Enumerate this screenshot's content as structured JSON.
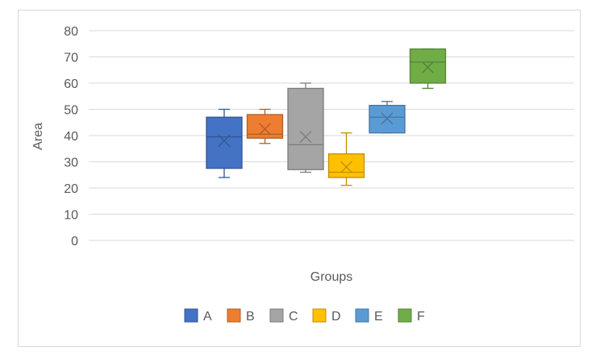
{
  "chart_data": {
    "type": "box",
    "title": "",
    "xlabel": "Groups",
    "ylabel": "Area",
    "ylim": [
      0,
      80
    ],
    "yticks": [
      0,
      10,
      20,
      30,
      40,
      50,
      60,
      70,
      80
    ],
    "grid": true,
    "legend_position": "bottom",
    "series": [
      {
        "name": "A",
        "color": "#4472C4",
        "min": 24,
        "q1": 27.5,
        "median": 39.5,
        "q3": 47,
        "max": 50,
        "mean": 38
      },
      {
        "name": "B",
        "color": "#ED7D31",
        "min": 37,
        "q1": 39,
        "median": 40.5,
        "q3": 48,
        "max": 50,
        "mean": 42.5
      },
      {
        "name": "C",
        "color": "#A5A5A5",
        "min": 26,
        "q1": 27,
        "median": 36.5,
        "q3": 58,
        "max": 60,
        "mean": 39.5
      },
      {
        "name": "D",
        "color": "#FFC000",
        "min": 21,
        "q1": 24,
        "median": 26,
        "q3": 33,
        "max": 41,
        "mean": 28
      },
      {
        "name": "E",
        "color": "#5B9BD5",
        "min": 41,
        "q1": 41,
        "median": 47,
        "q3": 51.5,
        "max": 53,
        "mean": 46.5
      },
      {
        "name": "F",
        "color": "#70AD47",
        "min": 58,
        "q1": 60,
        "median": 68,
        "q3": 73,
        "max": 73,
        "mean": 66
      }
    ]
  }
}
